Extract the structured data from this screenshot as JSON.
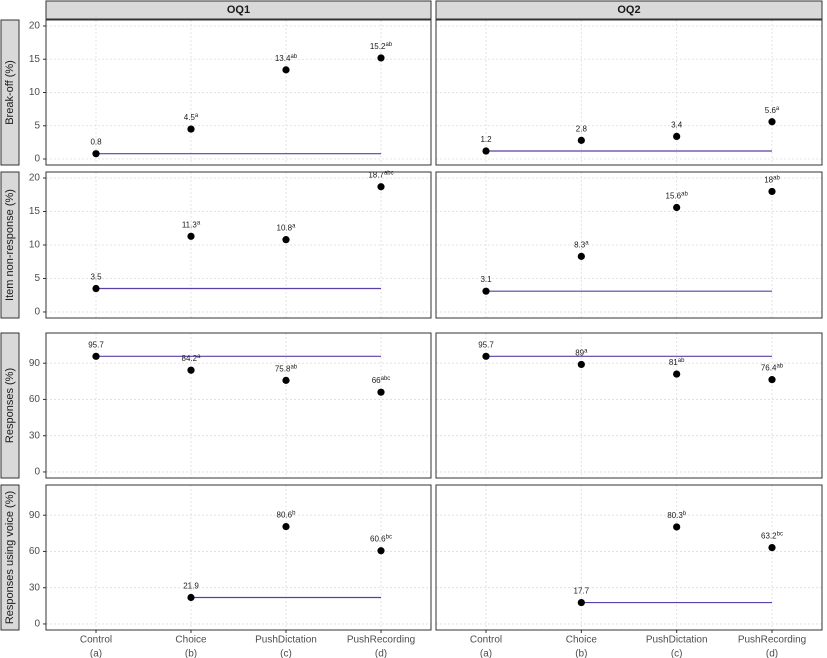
{
  "chart_data": [
    {
      "type": "dot",
      "title": "OQ1",
      "y_label": "Break-off (%)",
      "values": [
        0.8,
        4.5,
        13.4,
        15.2
      ],
      "superscripts": [
        null,
        "a",
        "ab",
        "ab"
      ],
      "ylim": [
        -0.9,
        20.9
      ],
      "yticks": [
        0,
        5,
        10,
        15,
        20
      ],
      "color": "#000000",
      "line_color": "#5b3fa8",
      "grid": true
    },
    {
      "type": "dot",
      "title": "OQ2",
      "values": [
        1.2,
        2.8,
        3.4,
        5.6
      ],
      "superscripts": [
        null,
        null,
        null,
        "a"
      ],
      "ylim": [
        -0.9,
        20.9
      ],
      "yticks": [
        0,
        5,
        10,
        15,
        20
      ],
      "color": "#000000",
      "line_color": "#5b3fa8",
      "grid": true
    },
    {
      "type": "dot",
      "y_label": "Item non-response (%)",
      "values": [
        3.5,
        11.3,
        10.8,
        18.7
      ],
      "superscripts": [
        null,
        "a",
        "a",
        "abc"
      ],
      "ylim": [
        -0.9,
        20.9
      ],
      "yticks": [
        0,
        5,
        10,
        15,
        20
      ],
      "color": "#000000",
      "line_color": "#5b3fa8",
      "grid": true
    },
    {
      "type": "dot",
      "values": [
        3.1,
        8.3,
        15.6,
        18
      ],
      "superscripts": [
        null,
        "a",
        "ab",
        "ab"
      ],
      "ylim": [
        -0.9,
        20.9
      ],
      "yticks": [
        0,
        5,
        10,
        15,
        20
      ],
      "color": "#000000",
      "line_color": "#5b3fa8",
      "grid": true
    },
    {
      "type": "dot",
      "y_label": "Responses (%)",
      "values": [
        95.7,
        84.2,
        75.8,
        66
      ],
      "superscripts": [
        null,
        "a",
        "ab",
        "abc"
      ],
      "ylim": [
        -5,
        115
      ],
      "yticks": [
        0,
        30,
        60,
        90
      ],
      "color": "#000000",
      "line_color": "#5b3fa8",
      "grid": true
    },
    {
      "type": "dot",
      "values": [
        95.7,
        89,
        81,
        76.4
      ],
      "superscripts": [
        null,
        "a",
        "ab",
        "ab"
      ],
      "ylim": [
        -5,
        115
      ],
      "yticks": [
        0,
        30,
        60,
        90
      ],
      "color": "#000000",
      "line_color": "#5b3fa8",
      "grid": true
    },
    {
      "type": "dot",
      "y_label": "Responses using voice (%)",
      "categories": [
        "Control",
        "Choice",
        "PushDictation",
        "PushRecording"
      ],
      "category_codes": [
        "(a)",
        "(b)",
        "(c)",
        "(d)"
      ],
      "values": [
        null,
        21.9,
        80.6,
        60.6
      ],
      "superscripts": [
        null,
        null,
        "b",
        "bc"
      ],
      "ylim": [
        -5,
        115
      ],
      "yticks": [
        0,
        30,
        60,
        90
      ],
      "color": "#000000",
      "line_color": "#5b3fa8",
      "grid": true
    },
    {
      "type": "dot",
      "categories": [
        "Control",
        "Choice",
        "PushDictation",
        "PushRecording"
      ],
      "category_codes": [
        "(a)",
        "(b)",
        "(c)",
        "(d)"
      ],
      "values": [
        null,
        17.7,
        80.3,
        63.2
      ],
      "superscripts": [
        null,
        null,
        "b",
        "bc"
      ],
      "ylim": [
        -5,
        115
      ],
      "yticks": [
        0,
        30,
        60,
        90
      ],
      "color": "#000000",
      "line_color": "#5b3fa8",
      "grid": true
    }
  ]
}
